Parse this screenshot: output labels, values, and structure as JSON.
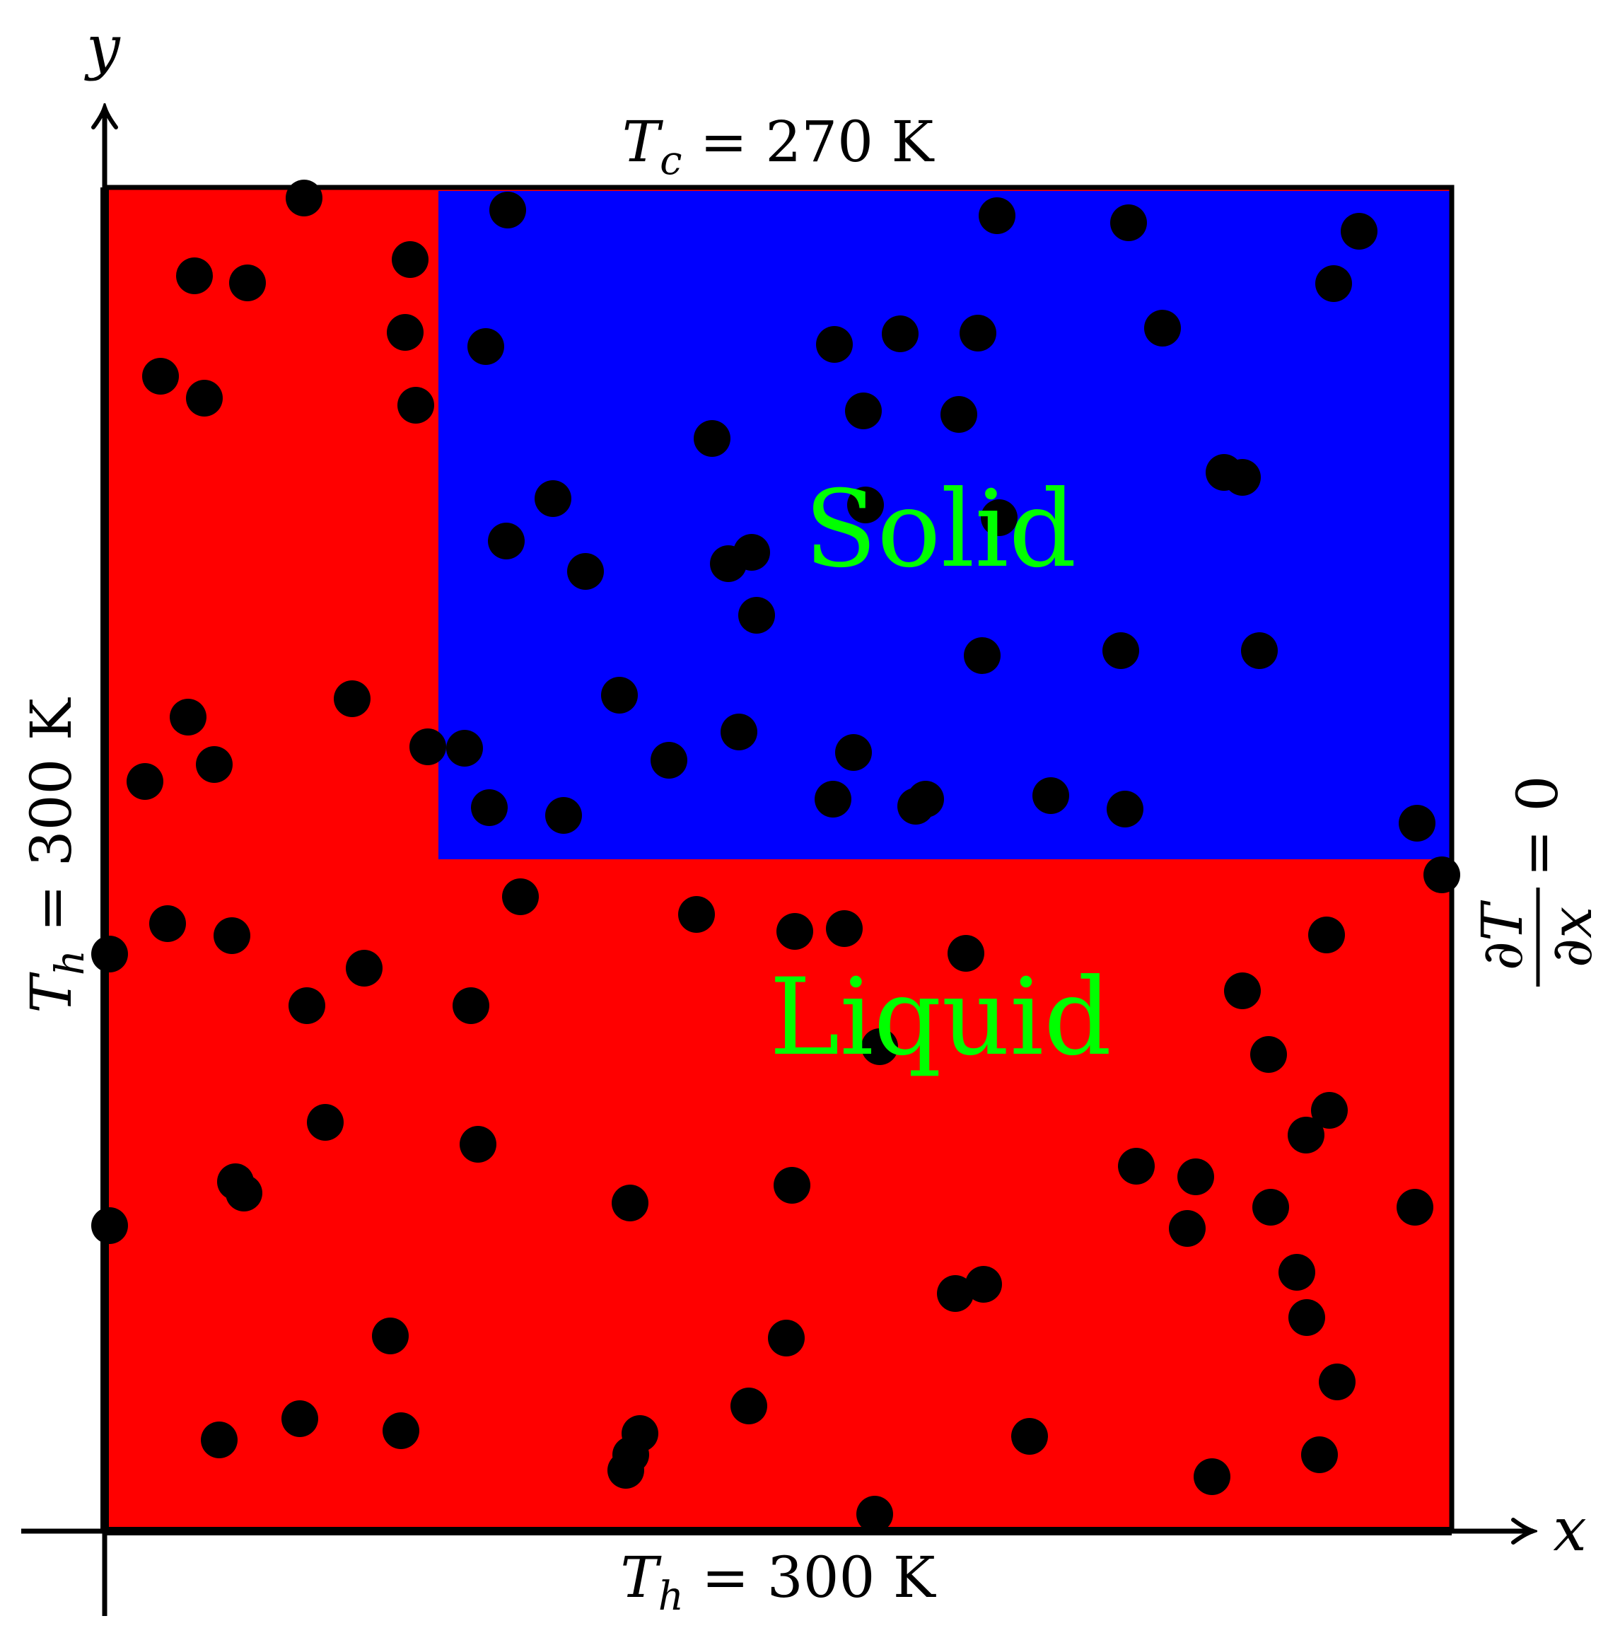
{
  "diagram": {
    "axes": {
      "x_label": "x",
      "y_label": "y"
    },
    "boundaries": {
      "top": {
        "symbol": "T",
        "sub": "c",
        "rest": " = 270 K"
      },
      "bottom": {
        "symbol": "T",
        "sub": "h",
        "rest": " = 300 K"
      },
      "left": {
        "symbol": "T",
        "sub": "h",
        "rest": " = 300 K"
      },
      "right": {
        "numerator": "∂T",
        "denominator": "∂x",
        "rest": " = 0"
      }
    },
    "regions": {
      "liquid": {
        "label": "Liquid",
        "color": "#ff0000"
      },
      "solid": {
        "label": "Solid",
        "color": "#0000ff"
      },
      "label_color": "#00ff00"
    },
    "particle_color": "#000000"
  }
}
